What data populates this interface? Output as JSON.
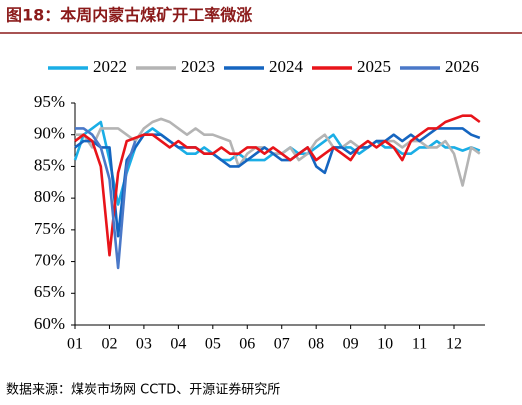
{
  "chart_data": {
    "type": "line",
    "title": "图18：本周内蒙古煤矿开工率微涨",
    "source": "数据来源：煤炭市场网 CCTD、开源证券研究所",
    "x": [
      1,
      1.25,
      1.5,
      1.75,
      2,
      2.25,
      2.5,
      2.75,
      3,
      3.25,
      3.5,
      3.75,
      4,
      4.25,
      4.5,
      4.75,
      5,
      5.25,
      5.5,
      5.75,
      6,
      6.25,
      6.5,
      6.75,
      7,
      7.25,
      7.5,
      7.75,
      8,
      8.25,
      8.5,
      8.75,
      9,
      9.25,
      9.5,
      9.75,
      10,
      10.25,
      10.5,
      10.75,
      11,
      11.25,
      11.5,
      11.75,
      12,
      12.25,
      12.5,
      12.75
    ],
    "xlim": [
      1,
      12.9
    ],
    "xticks": [
      {
        "value": 1,
        "label": "01"
      },
      {
        "value": 2,
        "label": "02"
      },
      {
        "value": 3,
        "label": "03"
      },
      {
        "value": 4,
        "label": "04"
      },
      {
        "value": 5,
        "label": "05"
      },
      {
        "value": 6,
        "label": "06"
      },
      {
        "value": 7,
        "label": "07"
      },
      {
        "value": 8,
        "label": "08"
      },
      {
        "value": 9,
        "label": "09"
      },
      {
        "value": 10,
        "label": "10"
      },
      {
        "value": 11,
        "label": "11"
      },
      {
        "value": 12,
        "label": "12"
      }
    ],
    "ylim": [
      60,
      95
    ],
    "yticks": [
      {
        "value": 60,
        "label": "60%"
      },
      {
        "value": 65,
        "label": "65%"
      },
      {
        "value": 70,
        "label": "70%"
      },
      {
        "value": 75,
        "label": "75%"
      },
      {
        "value": 80,
        "label": "80%"
      },
      {
        "value": 85,
        "label": "85%"
      },
      {
        "value": 90,
        "label": "90%"
      },
      {
        "value": 95,
        "label": "95%"
      }
    ],
    "legend": "top",
    "series": [
      {
        "name": "2022",
        "color": "#1aaee6",
        "values": [
          86,
          90,
          91,
          92,
          86,
          79,
          84,
          88,
          90,
          91,
          90,
          89,
          88,
          87,
          87,
          88,
          87,
          86,
          86,
          87,
          86,
          86,
          86,
          87,
          87,
          88,
          87,
          87,
          88,
          89,
          90,
          88,
          88,
          87,
          88,
          89,
          88,
          88,
          87,
          87,
          88,
          88,
          89,
          88,
          88,
          87.5,
          88,
          87.5
        ]
      },
      {
        "name": "2023",
        "color": "#b4b4b4",
        "values": [
          90,
          90,
          88,
          91,
          91,
          91,
          90,
          89,
          91,
          92,
          92.5,
          92,
          91,
          90,
          91,
          90,
          90,
          89.5,
          89,
          85,
          87,
          88,
          88,
          87,
          87,
          88,
          86,
          87,
          89,
          90,
          88,
          88,
          89,
          88,
          88,
          89,
          89,
          89,
          88,
          89,
          89,
          88,
          88,
          89,
          87,
          82,
          88,
          87
        ]
      },
      {
        "name": "2024",
        "color": "#1565c0",
        "values": [
          88,
          89,
          89,
          88,
          88,
          74,
          86,
          88,
          90,
          90,
          90,
          89,
          88,
          88,
          88,
          87,
          87,
          86,
          85,
          85,
          86,
          87,
          88,
          87,
          86,
          86,
          87,
          88,
          85,
          84,
          88,
          88,
          87,
          88,
          88,
          89,
          89,
          90,
          89,
          90,
          89,
          90,
          91,
          91,
          91,
          91,
          90,
          89.5
        ]
      },
      {
        "name": "2025",
        "color": "#e8141a",
        "values": [
          89,
          90,
          89,
          85,
          71,
          84,
          89,
          89.5,
          90,
          90,
          89,
          88,
          89,
          88,
          88,
          87,
          87,
          88,
          87,
          87,
          88,
          88,
          87,
          88,
          87,
          86,
          87,
          88,
          86,
          87,
          88,
          87,
          86,
          88,
          89,
          88,
          89,
          88,
          86,
          89,
          90,
          91,
          91,
          92,
          92.5,
          93,
          93,
          92
        ]
      },
      {
        "name": "2026",
        "color": "#4a78c8",
        "values": [
          91,
          91,
          90,
          88,
          83,
          69,
          85,
          89,
          null,
          null,
          null,
          null,
          null,
          null,
          null,
          null,
          null,
          null,
          null,
          null,
          null,
          null,
          null,
          null,
          null,
          null,
          null,
          null,
          null,
          null,
          null,
          null,
          null,
          null,
          null,
          null,
          null,
          null,
          null,
          null,
          null,
          null,
          null,
          null,
          null,
          null,
          null,
          null
        ]
      }
    ]
  }
}
